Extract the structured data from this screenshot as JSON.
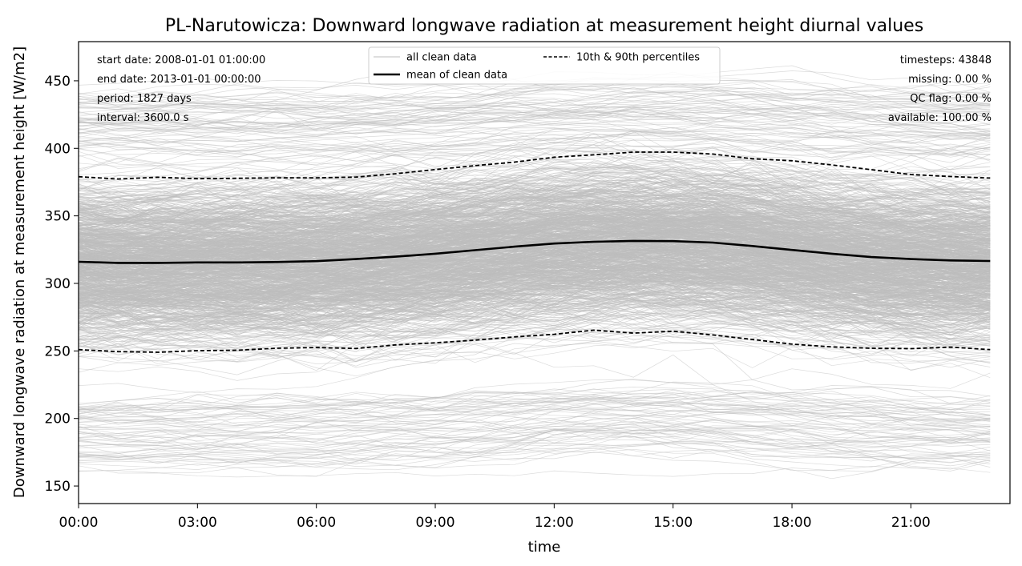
{
  "chart_data": {
    "type": "line",
    "title": "PL-Narutowicza: Downward longwave radiation at measurement height diurnal values",
    "xlabel": "time",
    "ylabel": "Downward longwave radiation at measurement height [W/m2]",
    "xlim": [
      0,
      23.5
    ],
    "ylim": [
      137,
      479
    ],
    "x_ticks": [
      0,
      3,
      6,
      9,
      12,
      15,
      18,
      21
    ],
    "x_tick_labels": [
      "00:00",
      "03:00",
      "06:00",
      "09:00",
      "12:00",
      "15:00",
      "18:00",
      "21:00"
    ],
    "y_ticks": [
      150,
      200,
      250,
      300,
      350,
      400,
      450
    ],
    "hours": [
      0,
      1,
      2,
      3,
      4,
      5,
      6,
      7,
      8,
      9,
      10,
      11,
      12,
      13,
      14,
      15,
      16,
      17,
      18,
      19,
      20,
      21,
      22,
      23
    ],
    "series": [
      {
        "name": "mean of clean data",
        "style": "solid",
        "values": [
          316,
          315.2,
          315.2,
          315.5,
          315.5,
          315.8,
          316.5,
          318,
          319.8,
          322,
          324.6,
          327.2,
          329.5,
          330.8,
          331.5,
          331.3,
          330.2,
          327.7,
          324.8,
          322,
          319.5,
          318,
          317,
          316.6
        ]
      },
      {
        "name": "10th percentile",
        "style": "dashed",
        "values": [
          251,
          249.5,
          249,
          250.2,
          250.5,
          252,
          252.5,
          251.8,
          254.5,
          256,
          258,
          260.4,
          262.3,
          265.4,
          263.2,
          264.6,
          261.8,
          258.5,
          255,
          253,
          252,
          251.7,
          252.8,
          251
        ]
      },
      {
        "name": "90th percentile",
        "style": "dashed",
        "values": [
          379,
          377.3,
          378.6,
          377.5,
          377.8,
          378.2,
          378.2,
          378.7,
          381.2,
          384.3,
          387.2,
          389.8,
          393.4,
          395.2,
          397.2,
          397.2,
          395.8,
          392.3,
          390.8,
          387.7,
          384.2,
          380.6,
          379.1,
          378
        ]
      }
    ],
    "background": {
      "name": "all clean data",
      "daily_series": 1827,
      "range": [
        152,
        465
      ]
    },
    "legend": {
      "position": "top-center",
      "entries": [
        {
          "label": "all clean data",
          "style": "thin-gray"
        },
        {
          "label": "mean of clean data",
          "style": "solid-black"
        },
        {
          "label": "10th & 90th percentiles",
          "style": "dashed-black"
        }
      ]
    },
    "info_left": [
      "start date: 2008-01-01 01:00:00",
      "end date: 2013-01-01 00:00:00",
      "period: 1827 days",
      "interval: 3600.0 s"
    ],
    "info_right": [
      "timesteps: 43848",
      "missing: 0.00 %",
      "QC flag: 0.00 %",
      "available: 100.00 %"
    ],
    "colors": {
      "background_lines": "#bdbdbd",
      "stats": "#000000"
    }
  }
}
